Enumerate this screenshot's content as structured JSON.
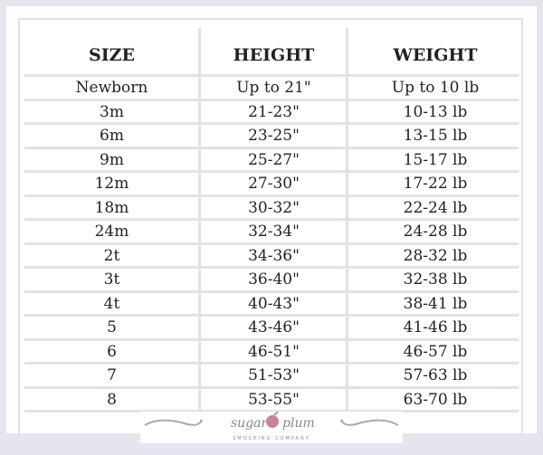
{
  "headers": [
    "SIZE",
    "HEIGHT",
    "WEIGHT"
  ],
  "rows": [
    [
      "Newborn",
      "Up to 21\"",
      "Up to 10 lb"
    ],
    [
      "3m",
      "21-23\"",
      "10-13 lb"
    ],
    [
      "6m",
      "23-25\"",
      "13-15 lb"
    ],
    [
      "9m",
      "25-27\"",
      "15-17 lb"
    ],
    [
      "12m",
      "27-30\"",
      "17-22 lb"
    ],
    [
      "18m",
      "30-32\"",
      "22-24 lb"
    ],
    [
      "24m",
      "32-34\"",
      "24-28 lb"
    ],
    [
      "2t",
      "34-36\"",
      "28-32 lb"
    ],
    [
      "3t",
      "36-40\"",
      "32-38 lb"
    ],
    [
      "4t",
      "40-43\"",
      "38-41 lb"
    ],
    [
      "5",
      "43-46\"",
      "41-46 lb"
    ],
    [
      "6",
      "46-51\"",
      "46-57 lb"
    ],
    [
      "7",
      "51-53\"",
      "57-63 lb"
    ],
    [
      "8",
      "53-55\"",
      "63-70 lb"
    ]
  ],
  "logo": {
    "name": "sugar plum",
    "tagline": "SMOCKING COMPANY"
  },
  "colors": {
    "background": "#e7e4f0",
    "grid": "#e2e0ee",
    "plum": "#c9849a"
  }
}
